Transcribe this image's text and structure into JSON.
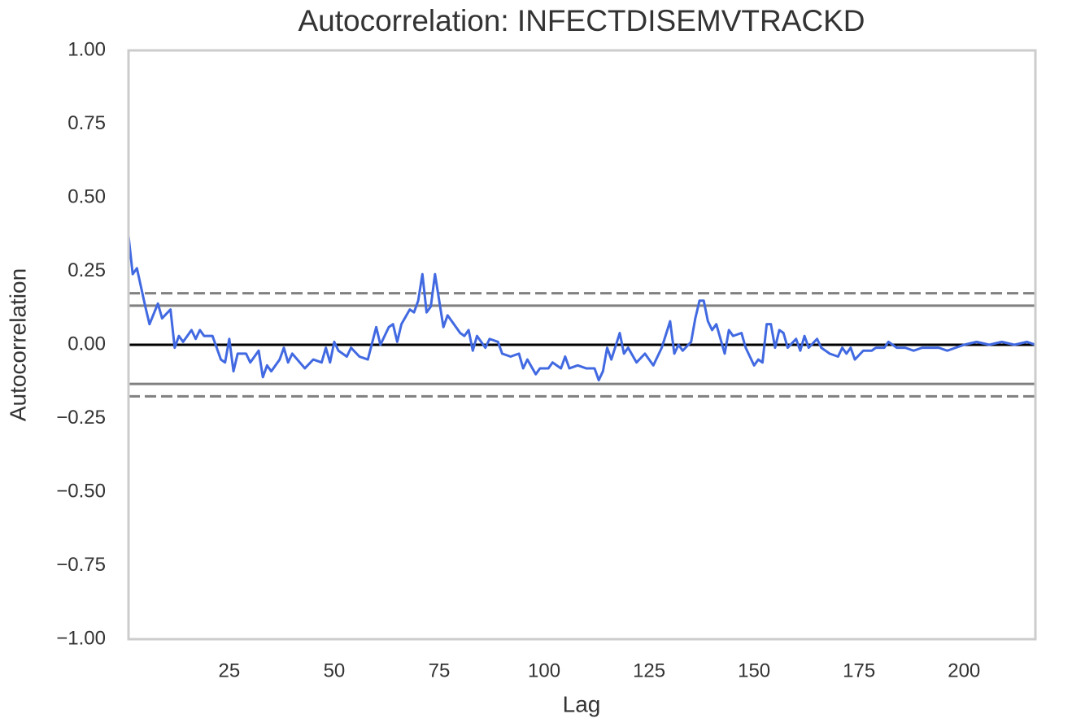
{
  "chart_data": {
    "type": "line",
    "title": "Autocorrelation: INFECTDISEMVTRACKD",
    "x_label": "Lag",
    "y_label": "Autocorrelation",
    "xlim": [
      1,
      217
    ],
    "ylim": [
      -1,
      1
    ],
    "xticks": [
      25,
      50,
      75,
      100,
      125,
      150,
      175,
      200
    ],
    "yticks": [
      {
        "value": -1,
        "label": "−1.00"
      },
      {
        "value": -0.75,
        "label": "−0.75"
      },
      {
        "value": -0.5,
        "label": "−0.50"
      },
      {
        "value": -0.25,
        "label": "−0.25"
      },
      {
        "value": 0,
        "label": "0.00"
      },
      {
        "value": 0.25,
        "label": "0.25"
      },
      {
        "value": 0.5,
        "label": "0.50"
      },
      {
        "value": 0.75,
        "label": "0.75"
      },
      {
        "value": 1,
        "label": "1.00"
      }
    ],
    "grid": false,
    "reference_lines": [
      {
        "value": 0.175,
        "style": "dashed",
        "color": "#808080"
      },
      {
        "value": 0.133,
        "style": "solid",
        "color": "#808080"
      },
      {
        "value": 0,
        "style": "solid",
        "color": "#000000"
      },
      {
        "value": -0.133,
        "style": "solid",
        "color": "#808080"
      },
      {
        "value": -0.175,
        "style": "dashed",
        "color": "#808080"
      }
    ],
    "series": [
      {
        "color": "#4169e1",
        "x": [
          1,
          2,
          3,
          5,
          6,
          8,
          9,
          11,
          12,
          13,
          14,
          16,
          17,
          18,
          19,
          21,
          23,
          24,
          25,
          26,
          27,
          29,
          30,
          32,
          33,
          34,
          35,
          37,
          38,
          39,
          40,
          43,
          45,
          47,
          48,
          49,
          50,
          51,
          53,
          54,
          56,
          58,
          60,
          61,
          63,
          64,
          65,
          66,
          68,
          69,
          70,
          71,
          72,
          73,
          74,
          75,
          76,
          77,
          79,
          80,
          81,
          82,
          83,
          84,
          86,
          87,
          89,
          90,
          92,
          94,
          95,
          96,
          98,
          99,
          101,
          102,
          104,
          105,
          106,
          108,
          110,
          112,
          113,
          114,
          115,
          116,
          118,
          119,
          120,
          122,
          124,
          126,
          128,
          130,
          131,
          132,
          133,
          135,
          136,
          137,
          138,
          139,
          140,
          141,
          143,
          144,
          145,
          147,
          148,
          150,
          151,
          152,
          153,
          154,
          155,
          156,
          157,
          158,
          160,
          161,
          162,
          163,
          165,
          166,
          168,
          170,
          171,
          172,
          173,
          174,
          176,
          178,
          179,
          181,
          182,
          184,
          186,
          188,
          190,
          192,
          194,
          196,
          198,
          200,
          203,
          206,
          209,
          212,
          215,
          217
        ],
        "values": [
          0.37,
          0.24,
          0.26,
          0.13,
          0.07,
          0.14,
          0.09,
          0.12,
          -0.01,
          0.03,
          0.01,
          0.05,
          0.02,
          0.05,
          0.03,
          0.03,
          -0.05,
          -0.06,
          0.02,
          -0.09,
          -0.03,
          -0.03,
          -0.06,
          -0.02,
          -0.11,
          -0.07,
          -0.09,
          -0.05,
          -0.01,
          -0.06,
          -0.03,
          -0.08,
          -0.05,
          -0.06,
          -0.01,
          -0.06,
          0.01,
          -0.02,
          -0.04,
          -0.01,
          -0.04,
          -0.05,
          0.06,
          0.0,
          0.06,
          0.07,
          0.01,
          0.07,
          0.12,
          0.11,
          0.15,
          0.24,
          0.11,
          0.13,
          0.24,
          0.15,
          0.06,
          0.1,
          0.06,
          0.04,
          0.03,
          0.05,
          -0.02,
          0.03,
          -0.01,
          0.02,
          0.01,
          -0.03,
          -0.04,
          -0.03,
          -0.08,
          -0.05,
          -0.1,
          -0.08,
          -0.08,
          -0.06,
          -0.08,
          -0.04,
          -0.08,
          -0.07,
          -0.08,
          -0.08,
          -0.12,
          -0.09,
          -0.01,
          -0.05,
          0.04,
          -0.03,
          -0.01,
          -0.06,
          -0.03,
          -0.07,
          -0.01,
          0.08,
          -0.03,
          0.0,
          -0.02,
          0.01,
          0.09,
          0.15,
          0.15,
          0.08,
          0.05,
          0.07,
          -0.03,
          0.05,
          0.03,
          0.04,
          -0.01,
          -0.07,
          -0.05,
          -0.06,
          0.07,
          0.07,
          -0.01,
          0.05,
          0.04,
          -0.01,
          0.02,
          -0.02,
          0.03,
          -0.01,
          0.02,
          -0.01,
          -0.03,
          -0.04,
          -0.01,
          -0.03,
          -0.01,
          -0.05,
          -0.02,
          -0.02,
          -0.01,
          -0.01,
          0.01,
          -0.01,
          -0.01,
          -0.02,
          -0.01,
          -0.01,
          -0.01,
          -0.02,
          -0.01,
          0.0,
          0.01,
          0.0,
          0.01,
          0.0,
          0.01,
          0.0
        ]
      }
    ]
  }
}
